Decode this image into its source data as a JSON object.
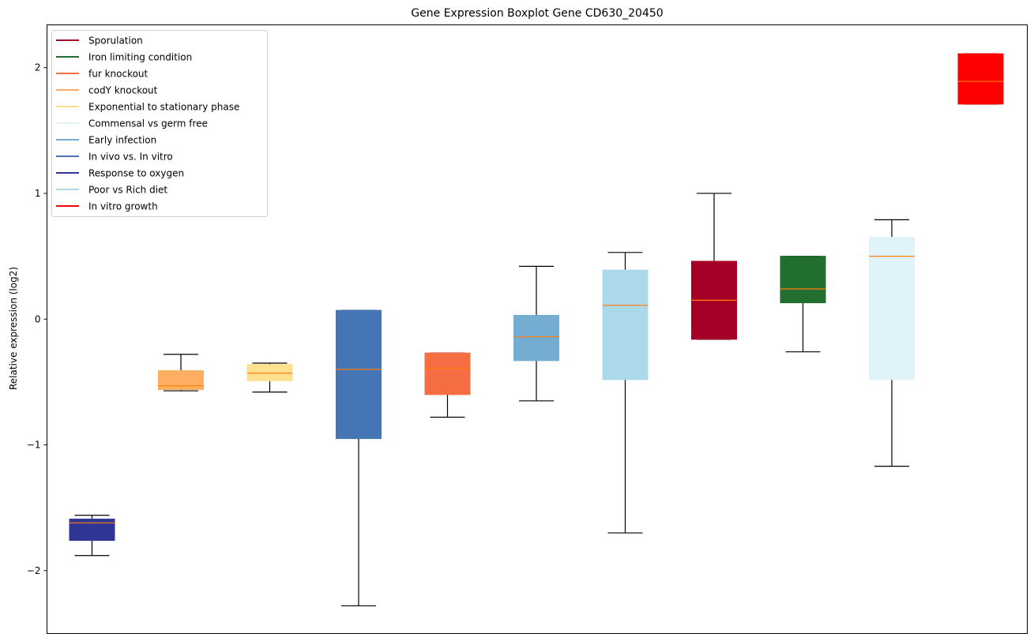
{
  "chart_data": {
    "type": "box",
    "title": "Gene Expression Boxplot Gene CD630_20450",
    "xlabel": "",
    "ylabel": "Relative expression (log2)",
    "ylim": [
      -2.5,
      2.34
    ],
    "yticks": [
      -2,
      -1,
      0,
      1,
      2
    ],
    "ytick_labels": [
      "−2",
      "−1",
      "0",
      "1",
      "2"
    ],
    "grid": false,
    "legend_position": "top-left",
    "median_color": "#ff7f0e",
    "boxes": [
      {
        "name": "Response to oxygen",
        "color": "#313695",
        "whisker_low": -1.88,
        "q1": -1.76,
        "median": -1.62,
        "q3": -1.59,
        "whisker_high": -1.56
      },
      {
        "name": "codY knockout",
        "color": "#fdae61",
        "whisker_low": -0.57,
        "q1": -0.56,
        "median": -0.53,
        "q3": -0.41,
        "whisker_high": -0.28
      },
      {
        "name": "Exponential to stationary phase",
        "color": "#fee090",
        "whisker_low": -0.58,
        "q1": -0.49,
        "median": -0.43,
        "q3": -0.36,
        "whisker_high": -0.35
      },
      {
        "name": "In vivo vs. In vitro",
        "color": "#4575b4",
        "whisker_low": -2.28,
        "q1": -0.95,
        "median": -0.4,
        "q3": 0.07,
        "whisker_high": 0.07
      },
      {
        "name": "fur knockout",
        "color": "#f46d43",
        "whisker_low": -0.78,
        "q1": -0.6,
        "median": -0.39,
        "q3": -0.27,
        "whisker_high": -0.27
      },
      {
        "name": "Early infection",
        "color": "#74add1",
        "whisker_low": -0.65,
        "q1": -0.33,
        "median": -0.14,
        "q3": 0.03,
        "whisker_high": 0.42
      },
      {
        "name": "Poor vs Rich diet",
        "color": "#abd9e9",
        "whisker_low": -1.7,
        "q1": -0.48,
        "median": 0.11,
        "q3": 0.39,
        "whisker_high": 0.53
      },
      {
        "name": "Sporulation",
        "color": "#a50026",
        "whisker_low": -0.16,
        "q1": -0.16,
        "median": 0.15,
        "q3": 0.46,
        "whisker_high": 1.0
      },
      {
        "name": "Iron limiting condition",
        "color": "#216e2e",
        "whisker_low": -0.26,
        "q1": 0.13,
        "median": 0.24,
        "q3": 0.5,
        "whisker_high": 0.5
      },
      {
        "name": "Commensal vs germ free",
        "color": "#e0f3f8",
        "whisker_low": -1.17,
        "q1": -0.48,
        "median": 0.5,
        "q3": 0.65,
        "whisker_high": 0.79
      },
      {
        "name": "In vitro growth",
        "color": "#ff0000",
        "whisker_low": 1.71,
        "q1": 1.71,
        "median": 1.89,
        "q3": 2.11,
        "whisker_high": 2.11
      }
    ],
    "legend": [
      {
        "label": "Sporulation",
        "color": "#a50026"
      },
      {
        "label": "Iron limiting condition",
        "color": "#216e2e"
      },
      {
        "label": "fur knockout",
        "color": "#f46d43"
      },
      {
        "label": "codY knockout",
        "color": "#fdae61"
      },
      {
        "label": "Exponential to stationary phase",
        "color": "#fee090"
      },
      {
        "label": "Commensal vs germ free",
        "color": "#e0f3f8"
      },
      {
        "label": "Early infection",
        "color": "#74add1"
      },
      {
        "label": "In vivo vs. In vitro",
        "color": "#4575b4"
      },
      {
        "label": "Response to oxygen",
        "color": "#313695"
      },
      {
        "label": "Poor vs Rich diet",
        "color": "#abd9e9"
      },
      {
        "label": "In vitro growth",
        "color": "#ff0000"
      }
    ]
  }
}
